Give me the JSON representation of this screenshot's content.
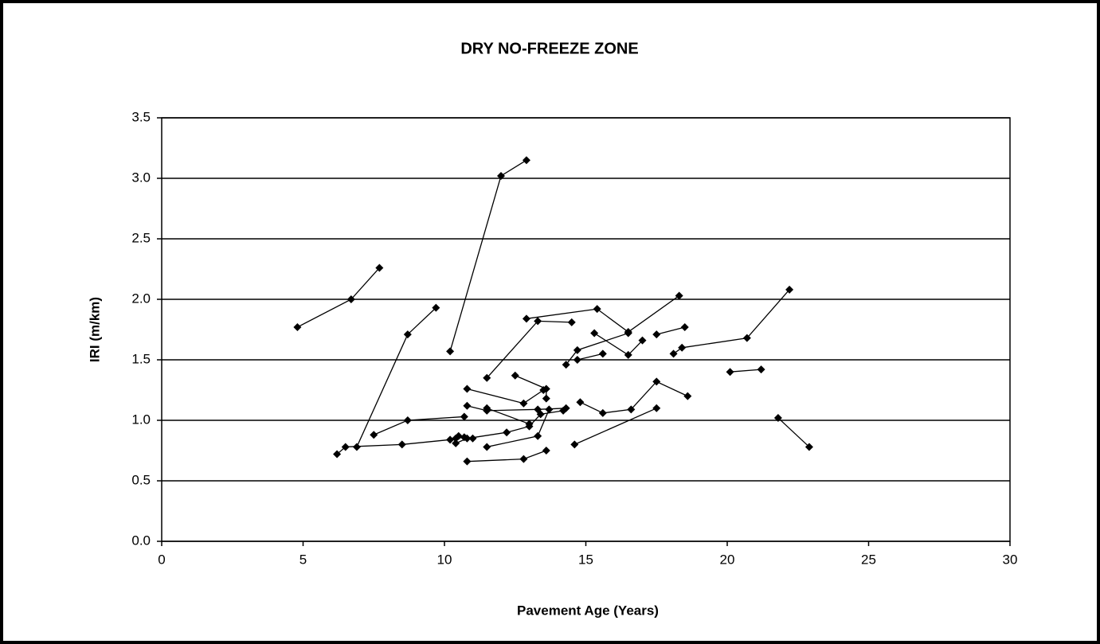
{
  "chart_data": {
    "type": "scatter",
    "title": "DRY NO-FREEZE ZONE",
    "xlabel": "Pavement Age (Years)",
    "ylabel": "IRI (m/km)",
    "xlim": [
      0,
      30
    ],
    "ylim": [
      0,
      3.5
    ],
    "xticks": [
      0,
      5,
      10,
      15,
      20,
      25,
      30
    ],
    "yticks": [
      {
        "value": 0,
        "label": "0.0"
      },
      0.5,
      {
        "value": 1,
        "label": "1.0"
      },
      1.5,
      {
        "value": 2,
        "label": "2.0"
      },
      2.5,
      {
        "value": 3,
        "label": "3.0"
      },
      3.5
    ],
    "grid": true,
    "series": [
      {
        "color": "#000000",
        "x": [
          4.8,
          6.7,
          7.7
        ],
        "values": [
          1.77,
          2.0,
          2.26
        ]
      },
      {
        "color": "#000000",
        "x": [
          6.9,
          8.7,
          9.7
        ],
        "values": [
          0.78,
          1.71,
          1.93
        ]
      },
      {
        "color": "#000000",
        "x": [
          10.2,
          12.0,
          12.9
        ],
        "values": [
          1.57,
          3.02,
          3.15
        ]
      },
      {
        "color": "#000000",
        "x": [
          6.2,
          6.5,
          8.5,
          10.2,
          10.5
        ],
        "values": [
          0.72,
          0.78,
          0.8,
          0.84,
          0.87
        ]
      },
      {
        "color": "#000000",
        "x": [
          7.5,
          8.7,
          10.7
        ],
        "values": [
          0.88,
          1.0,
          1.03
        ]
      },
      {
        "color": "#000000",
        "x": [
          11.5,
          13.3,
          14.5
        ],
        "values": [
          1.35,
          1.82,
          1.81
        ]
      },
      {
        "color": "#000000",
        "x": [
          12.9,
          15.4,
          16.5,
          18.3
        ],
        "values": [
          1.84,
          1.92,
          1.73,
          2.03
        ]
      },
      {
        "color": "#000000",
        "x": [
          14.3,
          14.7,
          16.5
        ],
        "values": [
          1.46,
          1.58,
          1.72
        ]
      },
      {
        "color": "#000000",
        "x": [
          15.3,
          16.5,
          17.0
        ],
        "values": [
          1.72,
          1.54,
          1.66
        ]
      },
      {
        "color": "#000000",
        "x": [
          14.7,
          15.6
        ],
        "values": [
          1.5,
          1.55
        ]
      },
      {
        "color": "#000000",
        "x": [
          17.5,
          18.5
        ],
        "values": [
          1.71,
          1.77
        ]
      },
      {
        "color": "#000000",
        "x": [
          18.1,
          18.4,
          20.7,
          22.2
        ],
        "values": [
          1.55,
          1.6,
          1.68,
          2.08
        ]
      },
      {
        "color": "#000000",
        "x": [
          20.1,
          21.2
        ],
        "values": [
          1.4,
          1.42
        ]
      },
      {
        "color": "#000000",
        "x": [
          21.8,
          22.9
        ],
        "values": [
          1.02,
          0.78
        ]
      },
      {
        "color": "#000000",
        "x": [
          12.5,
          13.6,
          13.6
        ],
        "values": [
          1.37,
          1.26,
          1.18
        ]
      },
      {
        "color": "#000000",
        "x": [
          10.8,
          12.8,
          13.5
        ],
        "values": [
          1.26,
          1.14,
          1.25
        ]
      },
      {
        "color": "#000000",
        "x": [
          10.8,
          11.5,
          13.3,
          14.3
        ],
        "values": [
          1.12,
          1.08,
          1.09,
          1.1
        ]
      },
      {
        "color": "#000000",
        "x": [
          11.5,
          13.0
        ],
        "values": [
          1.1,
          0.97
        ]
      },
      {
        "color": "#000000",
        "x": [
          11.5,
          13.3,
          13.7
        ],
        "values": [
          0.78,
          0.87,
          1.09
        ]
      },
      {
        "color": "#000000",
        "x": [
          10.8,
          12.8,
          13.6
        ],
        "values": [
          0.66,
          0.68,
          0.75
        ]
      },
      {
        "color": "#000000",
        "x": [
          14.6,
          17.5
        ],
        "values": [
          0.8,
          1.1
        ]
      },
      {
        "color": "#000000",
        "x": [
          14.8,
          15.6,
          16.6,
          17.5,
          18.6
        ],
        "values": [
          1.15,
          1.06,
          1.09,
          1.32,
          1.2
        ]
      },
      {
        "color": "#000000",
        "x": [
          10.4,
          10.8,
          12.2,
          13.0,
          13.4,
          14.2
        ],
        "values": [
          0.81,
          0.85,
          0.9,
          0.95,
          1.05,
          1.08
        ]
      },
      {
        "color": "#000000",
        "x": [
          10.4,
          10.7,
          11.0
        ],
        "values": [
          0.85,
          0.86,
          0.85
        ]
      }
    ]
  }
}
